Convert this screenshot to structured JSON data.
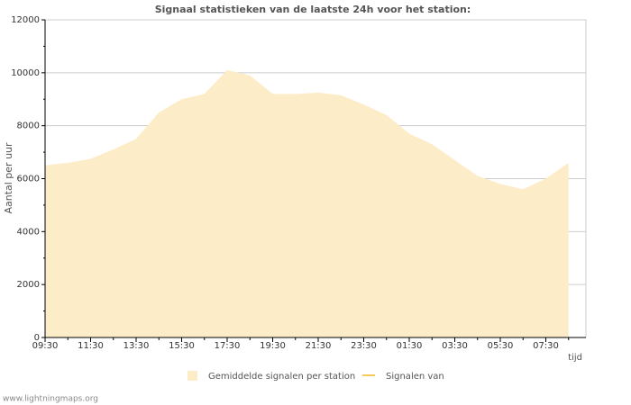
{
  "chart_data": {
    "type": "area",
    "title": "Signaal statistieken van de laatste 24h voor het station:",
    "y_label": "Aantal per uur",
    "x_label": "tijd",
    "footer": "www.lightningmaps.org",
    "categories": [
      "09:30",
      null,
      "11:30",
      null,
      "13:30",
      null,
      "15:30",
      null,
      "17:30",
      null,
      "19:30",
      null,
      "21:30",
      null,
      "23:30",
      null,
      "01:30",
      null,
      "03:30",
      null,
      "05:30",
      null,
      "07:30",
      null
    ],
    "series": [
      {
        "name": "Gemiddelde signalen per station",
        "color": "#fdecc8",
        "values": [
          6500,
          6600,
          6750,
          7100,
          7500,
          8500,
          9000,
          9200,
          10100,
          9900,
          9200,
          9200,
          9250,
          9150,
          8800,
          8400,
          7700,
          7300,
          6700,
          6100,
          5800,
          5600,
          6000,
          6600
        ]
      },
      {
        "name": "Signalen van",
        "color": "#f5c95a",
        "values": [
          null,
          null,
          null,
          null,
          null,
          null,
          null,
          null,
          null,
          null,
          null,
          null,
          null,
          null,
          null,
          null,
          null,
          null,
          null,
          null,
          null,
          null,
          null,
          null
        ]
      }
    ],
    "ylim": [
      0,
      12000
    ],
    "yticks": [
      0,
      2000,
      4000,
      6000,
      8000,
      10000,
      12000
    ],
    "grid": true
  }
}
